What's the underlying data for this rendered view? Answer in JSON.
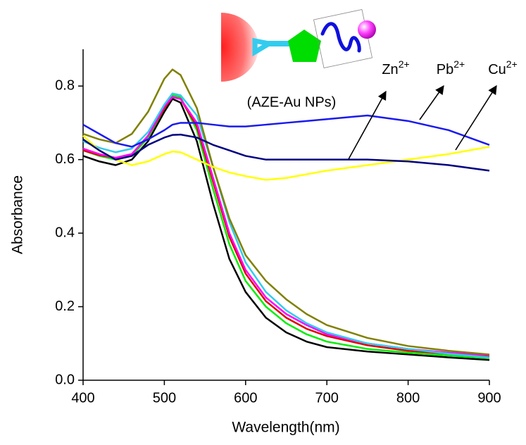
{
  "chart_data": {
    "type": "line",
    "x_label": "Wavelength(nm)",
    "y_label": "Absorbance",
    "xlim": [
      400,
      900
    ],
    "ylim": [
      0,
      0.9
    ],
    "xticks": [
      400,
      500,
      600,
      700,
      800,
      900
    ],
    "yticks": [
      {
        "value": 0,
        "label": "0.0"
      },
      0.2,
      0.4,
      0.6,
      0.8
    ],
    "x": [
      400,
      420,
      440,
      460,
      480,
      500,
      510,
      520,
      540,
      560,
      580,
      600,
      625,
      650,
      675,
      700,
      750,
      800,
      850,
      900
    ],
    "series": [
      {
        "color": "#000000",
        "values": [
          0.61,
          0.595,
          0.585,
          0.6,
          0.65,
          0.73,
          0.765,
          0.755,
          0.65,
          0.48,
          0.33,
          0.24,
          0.17,
          0.13,
          0.105,
          0.09,
          0.078,
          0.07,
          0.062,
          0.055
        ]
      },
      {
        "color": "#00ee00",
        "values": [
          0.625,
          0.61,
          0.6,
          0.61,
          0.66,
          0.74,
          0.775,
          0.77,
          0.68,
          0.52,
          0.37,
          0.27,
          0.2,
          0.155,
          0.125,
          0.105,
          0.085,
          0.075,
          0.067,
          0.06
        ]
      },
      {
        "color": "#e00000",
        "values": [
          0.625,
          0.612,
          0.605,
          0.615,
          0.665,
          0.74,
          0.77,
          0.765,
          0.69,
          0.54,
          0.39,
          0.29,
          0.215,
          0.17,
          0.14,
          0.12,
          0.095,
          0.08,
          0.072,
          0.065
        ]
      },
      {
        "color": "#ff00ff",
        "values": [
          0.63,
          0.615,
          0.605,
          0.615,
          0.665,
          0.745,
          0.77,
          0.765,
          0.7,
          0.55,
          0.4,
          0.3,
          0.225,
          0.18,
          0.15,
          0.125,
          0.1,
          0.085,
          0.075,
          0.068
        ]
      },
      {
        "color": "#33ccee",
        "values": [
          0.65,
          0.632,
          0.62,
          0.63,
          0.675,
          0.75,
          0.78,
          0.775,
          0.72,
          0.58,
          0.43,
          0.32,
          0.24,
          0.19,
          0.155,
          0.13,
          0.1,
          0.085,
          0.072,
          0.062
        ]
      },
      {
        "color": "#808000",
        "values": [
          0.67,
          0.655,
          0.645,
          0.67,
          0.73,
          0.82,
          0.845,
          0.83,
          0.74,
          0.58,
          0.44,
          0.34,
          0.27,
          0.22,
          0.18,
          0.15,
          0.115,
          0.093,
          0.08,
          0.07
        ]
      },
      {
        "color": "#ffff00",
        "values": [
          0.665,
          0.625,
          0.6,
          0.585,
          0.595,
          0.615,
          0.622,
          0.62,
          0.6,
          0.58,
          0.565,
          0.555,
          0.545,
          0.55,
          0.56,
          0.57,
          0.585,
          0.6,
          0.615,
          0.635
        ]
      },
      {
        "color": "#1a1aee",
        "values": [
          0.695,
          0.67,
          0.645,
          0.635,
          0.655,
          0.68,
          0.695,
          0.7,
          0.7,
          0.695,
          0.69,
          0.69,
          0.695,
          0.7,
          0.705,
          0.71,
          0.72,
          0.705,
          0.68,
          0.64
        ]
      },
      {
        "color": "#000080",
        "values": [
          0.655,
          0.625,
          0.6,
          0.61,
          0.64,
          0.66,
          0.667,
          0.668,
          0.66,
          0.64,
          0.625,
          0.61,
          0.6,
          0.6,
          0.6,
          0.6,
          0.6,
          0.595,
          0.585,
          0.57
        ]
      }
    ],
    "annotations": [
      {
        "text": "Zn",
        "superscript": "2+"
      },
      {
        "text": "Pb",
        "superscript": "2+"
      },
      {
        "text": "Cu",
        "superscript": "2+"
      }
    ],
    "inset_label": "(AZE-Au NPs)"
  }
}
